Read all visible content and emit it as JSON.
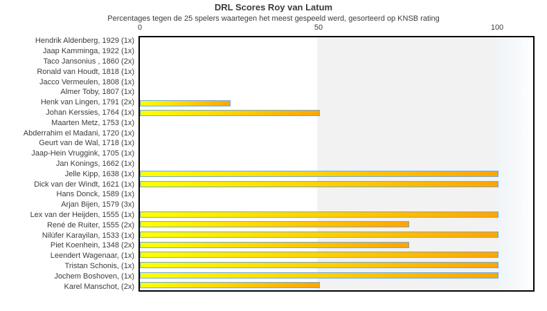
{
  "title": "DRL Scores Roy van Latum",
  "subtitle": "Percentages tegen de 25 spelers waartegen het meest gespeeld werd, gesorteerd op KNSB rating",
  "axis": {
    "ticks": [
      {
        "label": "0",
        "value": 0
      },
      {
        "label": "50",
        "value": 50
      },
      {
        "label": "100",
        "value": 100
      }
    ]
  },
  "colors": {
    "bar_gradient_start": "#ffff00",
    "bar_gradient_end": "#ffa500",
    "bar_border": "#6fa8dc",
    "band_white": "#ffffff",
    "band_gray": "#f2f2f2",
    "band_blue": "#eff4f8",
    "plot_border": "#000000",
    "text": "#3b3b3b"
  },
  "chart_data": {
    "type": "bar",
    "orientation": "horizontal",
    "title": "DRL Scores Roy van Latum",
    "subtitle": "Percentages tegen de 25 spelers waartegen het meest gespeeld werd, gesorteerd op KNSB rating",
    "xlabel": "",
    "ylabel": "",
    "xlim": [
      0,
      100
    ],
    "grid": false,
    "legend": false,
    "categories": [
      "Hendrik Aldenberg, 1929 (1x)",
      "Jaap Kamminga, 1922 (1x)",
      "Taco Jansonius , 1860 (2x)",
      "Ronald van Houdt, 1818 (1x)",
      "Jacco Vermeulen, 1808 (1x)",
      "Almer Toby, 1807 (1x)",
      "Henk van Lingen, 1791 (2x)",
      "Johan Kerssies, 1764 (1x)",
      "Maarten Metz, 1753 (1x)",
      "Abderrahim el Madani, 1720 (1x)",
      "Geurt van de Wal, 1718 (1x)",
      "Jaap-Hein Vruggink, 1705 (1x)",
      "Jan Konings, 1662 (1x)",
      "Jelle Kipp, 1638 (1x)",
      "Dick van der Windt, 1621 (1x)",
      "Hans Donck, 1589 (1x)",
      "Arjan Bijen, 1579 (3x)",
      "Lex van der Heijden, 1555 (1x)",
      "René de Ruiter, 1555 (2x)",
      "Nilüfer Karayilan, 1533 (1x)",
      "Piet Koenhein, 1348 (2x)",
      "Leendert Wagenaar,  (1x)",
      "Tristan Schonis,  (1x)",
      "Jochem Boshoven,  (1x)",
      "Karel Manschot,  (2x)"
    ],
    "values": [
      0,
      0,
      0,
      0,
      0,
      0,
      25,
      50,
      0,
      0,
      0,
      0,
      0,
      100,
      100,
      0,
      0,
      100,
      75,
      100,
      75,
      100,
      100,
      100,
      50
    ]
  }
}
